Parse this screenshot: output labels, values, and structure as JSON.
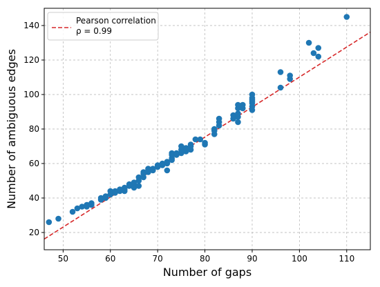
{
  "chart_data": {
    "type": "scatter",
    "xlabel": "Number of gaps",
    "ylabel": "Number of ambiguous edges",
    "xlim": [
      46,
      115
    ],
    "ylim": [
      10,
      150
    ],
    "xticks": [
      50,
      60,
      70,
      80,
      90,
      100,
      110
    ],
    "yticks": [
      20,
      40,
      60,
      80,
      100,
      120,
      140
    ],
    "grid": true,
    "legend": {
      "placement": "upper-left",
      "line1": "Pearson correlation",
      "line2": "ρ = 0.99"
    },
    "colors": {
      "points": "#1f77b4",
      "fit": "#d62728"
    },
    "fit_line": {
      "style": "dashed",
      "x": [
        46,
        115
      ],
      "y": [
        16.2,
        136.2
      ]
    },
    "points": [
      [
        47,
        26
      ],
      [
        49,
        28
      ],
      [
        52,
        32
      ],
      [
        53,
        34
      ],
      [
        54,
        35
      ],
      [
        55,
        35
      ],
      [
        55,
        36
      ],
      [
        56,
        37
      ],
      [
        56,
        36
      ],
      [
        58,
        39
      ],
      [
        58,
        40
      ],
      [
        59,
        40
      ],
      [
        59,
        41
      ],
      [
        60,
        42
      ],
      [
        60,
        44
      ],
      [
        61,
        44
      ],
      [
        61,
        43
      ],
      [
        62,
        44
      ],
      [
        62,
        45
      ],
      [
        63,
        45
      ],
      [
        63,
        46
      ],
      [
        63,
        44
      ],
      [
        64,
        47
      ],
      [
        64,
        48
      ],
      [
        65,
        46
      ],
      [
        65,
        48
      ],
      [
        65,
        49
      ],
      [
        66,
        50
      ],
      [
        66,
        52
      ],
      [
        66,
        47
      ],
      [
        67,
        52
      ],
      [
        67,
        55
      ],
      [
        67,
        54
      ],
      [
        68,
        55
      ],
      [
        68,
        56
      ],
      [
        68,
        57
      ],
      [
        69,
        56
      ],
      [
        69,
        57
      ],
      [
        70,
        58
      ],
      [
        70,
        59
      ],
      [
        71,
        59
      ],
      [
        71,
        60
      ],
      [
        72,
        56
      ],
      [
        72,
        60
      ],
      [
        72,
        61
      ],
      [
        73,
        62
      ],
      [
        73,
        63
      ],
      [
        73,
        65
      ],
      [
        73,
        66
      ],
      [
        74,
        65
      ],
      [
        74,
        66
      ],
      [
        75,
        66
      ],
      [
        75,
        68
      ],
      [
        75,
        70
      ],
      [
        76,
        67
      ],
      [
        76,
        69
      ],
      [
        77,
        68
      ],
      [
        77,
        70
      ],
      [
        77,
        71
      ],
      [
        78,
        74
      ],
      [
        79,
        74
      ],
      [
        80,
        71
      ],
      [
        80,
        72
      ],
      [
        82,
        77
      ],
      [
        82,
        79
      ],
      [
        82,
        80
      ],
      [
        83,
        82
      ],
      [
        83,
        84
      ],
      [
        83,
        86
      ],
      [
        86,
        86
      ],
      [
        86,
        88
      ],
      [
        87,
        84
      ],
      [
        87,
        87
      ],
      [
        87,
        89
      ],
      [
        87,
        92
      ],
      [
        87,
        94
      ],
      [
        88,
        92
      ],
      [
        88,
        94
      ],
      [
        90,
        91
      ],
      [
        90,
        93
      ],
      [
        90,
        95
      ],
      [
        90,
        96
      ],
      [
        90,
        97
      ],
      [
        90,
        98
      ],
      [
        90,
        100
      ],
      [
        96,
        104
      ],
      [
        96,
        113
      ],
      [
        98,
        109
      ],
      [
        98,
        111
      ],
      [
        102,
        130
      ],
      [
        103,
        124
      ],
      [
        104,
        122
      ],
      [
        104,
        127
      ],
      [
        110,
        145
      ]
    ]
  }
}
